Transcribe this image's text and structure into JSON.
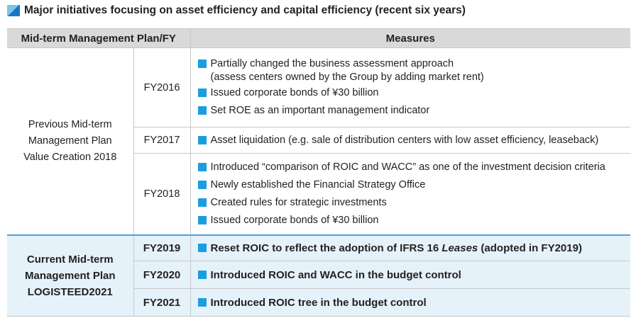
{
  "title": "Major initiatives focusing on asset efficiency and capital efficiency (recent six years)",
  "table": {
    "headers": [
      "Mid-term Management Plan/FY",
      "Measures"
    ],
    "groups": [
      {
        "plan": [
          "Previous Mid-term",
          "Management Plan",
          "Value Creation 2018"
        ],
        "rows": [
          {
            "fy": "FY2016",
            "measures": [
              [
                "Partially changed the business assessment approach",
                "(assess centers owned by the Group by adding market rent)"
              ],
              [
                "Issued corporate bonds of ¥30 billion"
              ],
              [
                "Set ROE as an important management indicator"
              ]
            ]
          },
          {
            "fy": "FY2017",
            "measures": [
              [
                "Asset liquidation (e.g. sale of distribution centers with low asset efficiency, leaseback)"
              ]
            ]
          },
          {
            "fy": "FY2018",
            "measures": [
              [
                "Introduced “comparison of ROIC and WACC” as one of the investment decision criteria"
              ],
              [
                "Newly established the Financial Strategy Office"
              ],
              [
                "Created rules for strategic investments"
              ],
              [
                "Issued corporate bonds of ¥30 billion"
              ]
            ]
          }
        ]
      },
      {
        "plan": [
          "Current Mid-term",
          "Management Plan",
          "LOGISTEED2021"
        ],
        "rows": [
          {
            "fy": "FY2019",
            "measures": [
              [
                [
                  {
                    "text": "Reset ROIC to reflect the adoption of IFRS 16 "
                  },
                  {
                    "text": "Leases",
                    "italic": true
                  },
                  {
                    "text": " (adopted in FY2019)"
                  }
                ]
              ]
            ]
          },
          {
            "fy": "FY2020",
            "measures": [
              [
                "Introduced ROIC and WACC in the budget control"
              ]
            ]
          },
          {
            "fy": "FY2021",
            "measures": [
              [
                "Introduced ROIC tree in the budget control"
              ]
            ]
          }
        ]
      }
    ]
  }
}
